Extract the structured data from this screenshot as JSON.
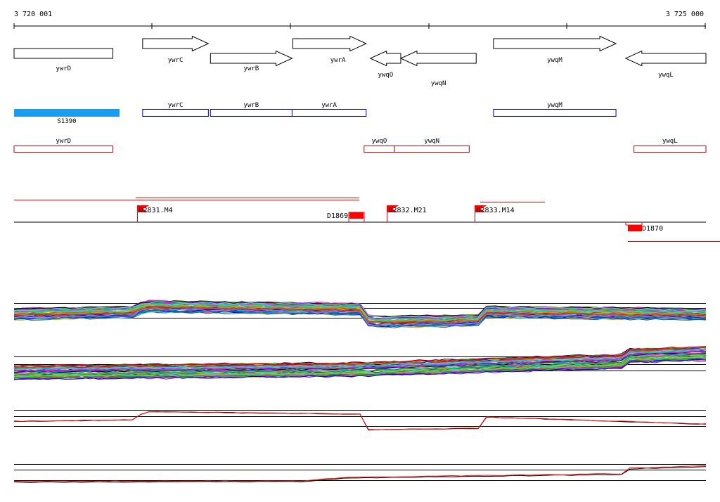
{
  "ruler": {
    "start_label": "3 720 001",
    "end_label": "3 725 000",
    "start_bp": 3720001,
    "end_bp": 3725000
  },
  "colors": {
    "gene_outline": "#000000",
    "upper_box": "#0000cc",
    "lower_box": "#cc0000",
    "feature_fill": "#ff0000",
    "promoter_fill": "#1a9cf0",
    "axis": "#000000"
  },
  "genes": [
    {
      "name": "ywrD",
      "start": 3720001,
      "end": 3720715,
      "strand": "-",
      "row": "a"
    },
    {
      "name": "ywrC",
      "start": 3720930,
      "end": 3721405,
      "strand": "+",
      "row": "a"
    },
    {
      "name": "ywrB",
      "start": 3721420,
      "end": 3722010,
      "strand": "+",
      "row": "b"
    },
    {
      "name": "ywrA",
      "start": 3722015,
      "end": 3722545,
      "strand": "+",
      "row": "a"
    },
    {
      "name": "ywqO",
      "start": 3722575,
      "end": 3722795,
      "strand": "-",
      "row": "b"
    },
    {
      "name": "ywqN",
      "start": 3722795,
      "end": 3723340,
      "strand": "-",
      "row": "c"
    },
    {
      "name": "ywqM",
      "start": 3723465,
      "end": 3724350,
      "strand": "+",
      "row": "a"
    },
    {
      "name": "ywqL",
      "start": 3724420,
      "end": 3725000,
      "strand": "-",
      "row": "b"
    }
  ],
  "promoter": {
    "label": "S1390",
    "start": 3720001,
    "end": 3720890
  },
  "upper_boxes": [
    {
      "name": "ywrC",
      "start": 3720930,
      "end": 3721405
    },
    {
      "name": "ywrB",
      "start": 3721420,
      "end": 3722010
    },
    {
      "name": "ywrA",
      "start": 3722010,
      "end": 3722545
    },
    {
      "name": "ywqM",
      "start": 3723465,
      "end": 3724350
    }
  ],
  "lower_boxes": [
    {
      "name": "ywrD",
      "start": 3720001,
      "end": 3720715
    },
    {
      "name": "ywqO",
      "start": 3722530,
      "end": 3722750
    },
    {
      "name": "ywqN",
      "start": 3722750,
      "end": 3723290
    },
    {
      "name": "ywqL",
      "start": 3724480,
      "end": 3725000
    }
  ],
  "transcription_units": [
    {
      "label": "U2831.M4",
      "start": 3720890,
      "span_end": 3722500
    },
    {
      "label": "U2832.M21",
      "start": 3722695
    },
    {
      "label": "U2833.M14",
      "start": 3723330,
      "span_end": 3723800
    }
  ],
  "downshifts": [
    {
      "label": "D1869",
      "start": 3722400,
      "end": 3722490
    },
    {
      "label": "D1870",
      "start": 3724505,
      "end": 3724595
    }
  ],
  "expression_panels": [
    {
      "name": "expression-panel-1",
      "lines": 60
    },
    {
      "name": "expression-panel-2",
      "lines": 60
    },
    {
      "name": "expression-panel-3",
      "lines": 2
    },
    {
      "name": "expression-panel-4",
      "lines": 2
    }
  ]
}
